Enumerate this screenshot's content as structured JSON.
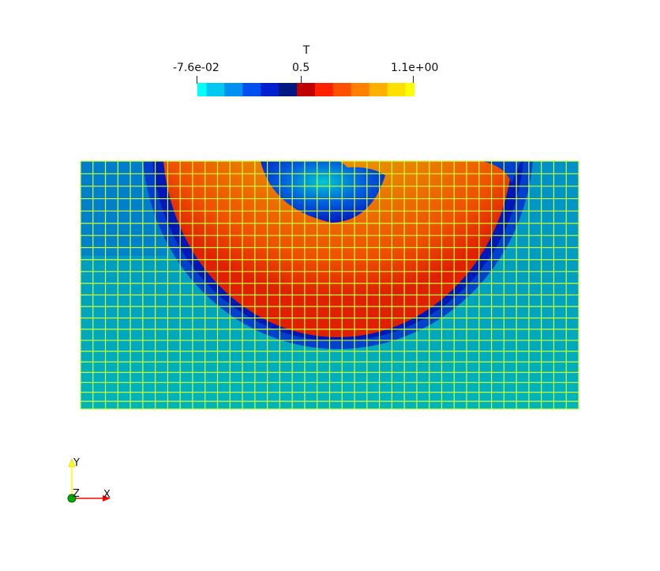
{
  "colorbar": {
    "title": "T",
    "min_label": "-7.6e-02",
    "mid_label": "0.5",
    "max_label": "1.1e+00",
    "colors": [
      "#00ffff",
      "#00c8f0",
      "#0090f0",
      "#0050f0",
      "#0020d0",
      "#001880",
      "#c00000",
      "#ff2000",
      "#ff5000",
      "#ff8000",
      "#ffb000",
      "#ffe000",
      "#ffff00"
    ]
  },
  "plot": {
    "field": "T",
    "mesh_color": "#ccff33",
    "background_color": "#00b0b8",
    "hot_color": "#e89000",
    "cold_ring_color": "#0030d0"
  },
  "orientation_axes": {
    "x_label": "X",
    "y_label": "Y",
    "z_label": "Z",
    "x_color": "#ff0000",
    "y_color": "#ffff00",
    "z_color": "#00aa00"
  }
}
